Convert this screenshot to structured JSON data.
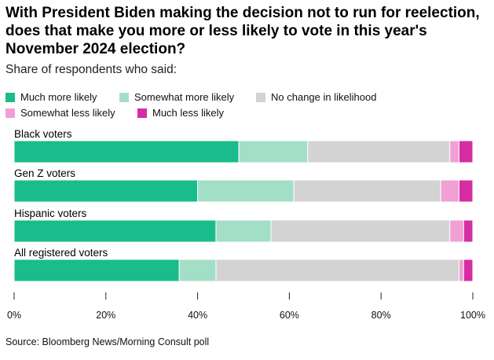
{
  "header": {
    "title": "With President Biden making the decision not to run for reelection, does that make you more or less likely to vote in this year's November 2024 election?",
    "subtitle": "Share of respondents who said:"
  },
  "footer": {
    "source": "Source: Bloomberg News/Morning Consult poll"
  },
  "chart_data": {
    "type": "bar",
    "orientation": "horizontal",
    "stacked": true,
    "categories": [
      "Black voters",
      "Gen Z voters",
      "Hispanic voters",
      "All registered voters"
    ],
    "series": [
      {
        "name": "Much more likely",
        "color": "#1abc8c",
        "values": [
          49,
          40,
          44,
          36
        ]
      },
      {
        "name": "Somewhat more likely",
        "color": "#a3dfc6",
        "values": [
          15,
          21,
          12,
          8
        ]
      },
      {
        "name": "No change in likelihood",
        "color": "#d3d3d3",
        "values": [
          31,
          32,
          39,
          53
        ]
      },
      {
        "name": "Somewhat less likely",
        "color": "#f0a0d4",
        "values": [
          2,
          4,
          3,
          1
        ]
      },
      {
        "name": "Much less likely",
        "color": "#d62da2",
        "values": [
          3,
          3,
          2,
          2
        ]
      }
    ],
    "x_ticks": [
      "0%",
      "20%",
      "40%",
      "60%",
      "80%",
      "100%"
    ],
    "xlim": [
      0,
      100
    ],
    "grid": false,
    "legend_position": "top"
  }
}
